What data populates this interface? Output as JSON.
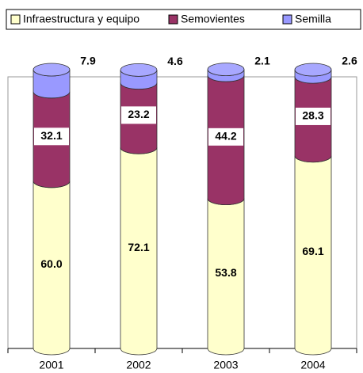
{
  "chart_data": {
    "type": "bar",
    "stacked": true,
    "categories": [
      "2001",
      "2002",
      "2003",
      "2004"
    ],
    "series": [
      {
        "name": "Infraestructura y equipo",
        "color": "#ffffcc",
        "values": [
          60.0,
          72.1,
          53.8,
          69.1
        ],
        "value_labels": [
          "60.0",
          "72.1",
          "53.8",
          "69.1"
        ]
      },
      {
        "name": "Semovientes",
        "color": "#993366",
        "values": [
          32.1,
          23.2,
          44.2,
          28.3
        ],
        "value_labels": [
          "32.1",
          "23.2",
          "44.2",
          "28.3"
        ]
      },
      {
        "name": "Semilla",
        "color": "#9999ff",
        "values": [
          7.9,
          4.6,
          2.1,
          2.6
        ],
        "value_labels": [
          "7.9",
          "4.6",
          "2.1",
          "2.6"
        ]
      }
    ],
    "ylim": [
      0,
      100
    ],
    "legend": "top"
  }
}
